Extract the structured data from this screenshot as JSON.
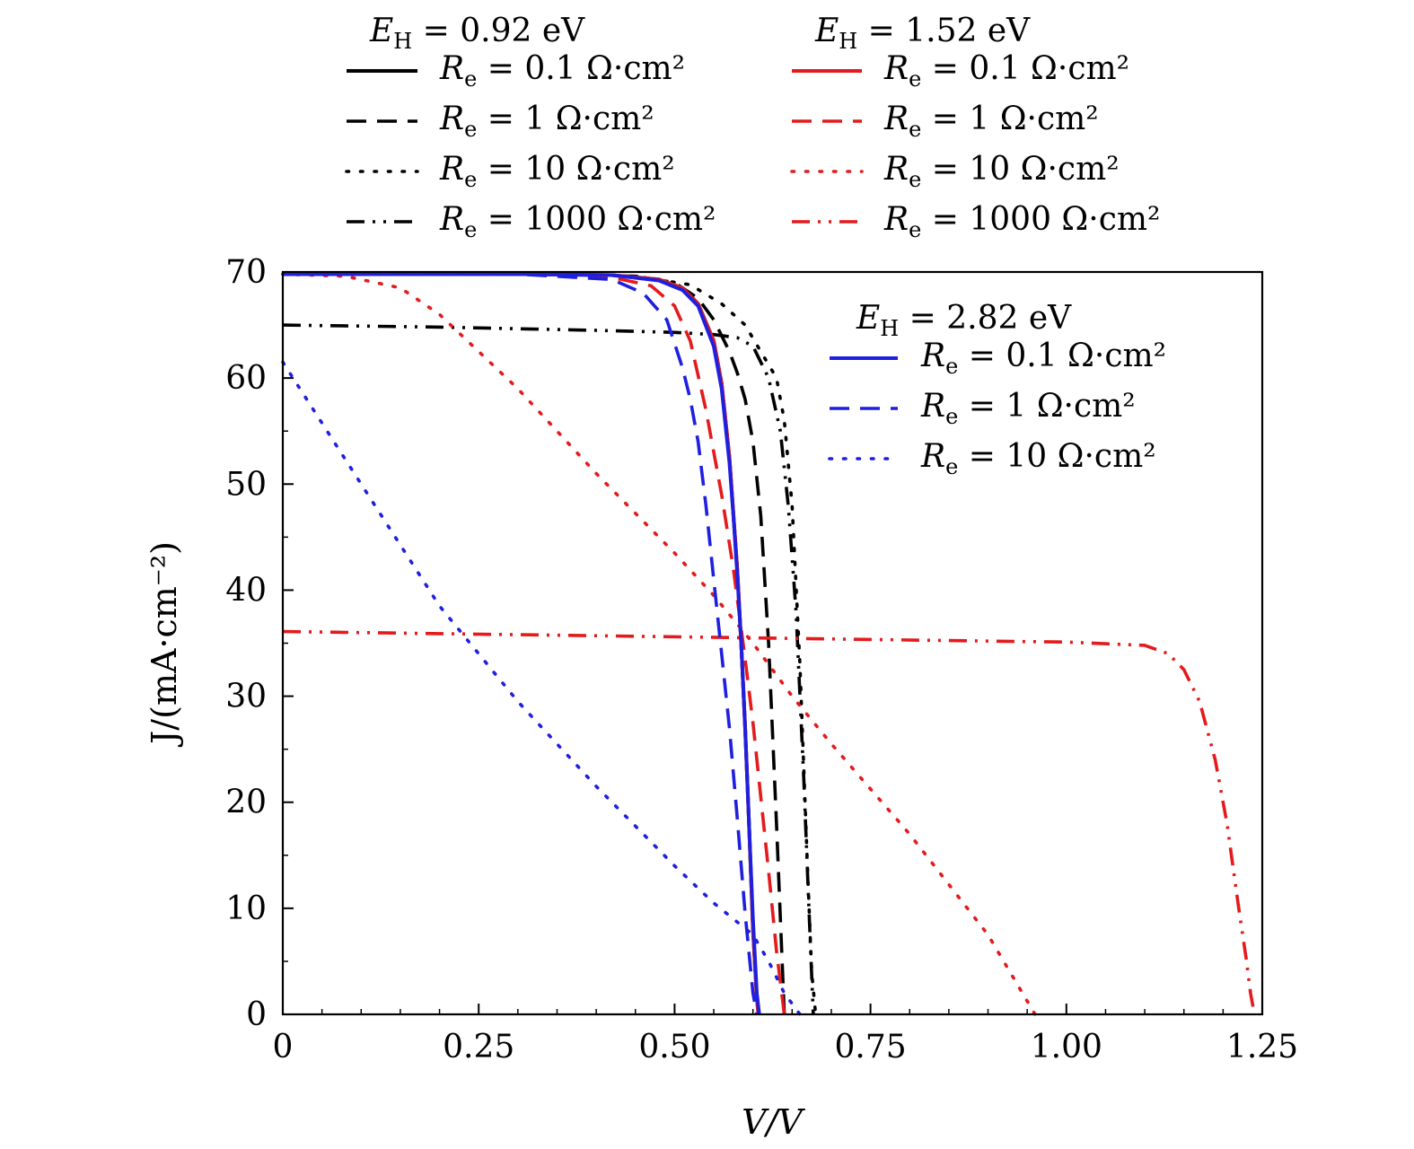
{
  "chart_data": {
    "type": "line",
    "title": "",
    "xlabel": "V/V",
    "ylabel": "J/(mA·cm⁻²)",
    "xlim": [
      0,
      1.25
    ],
    "ylim": [
      0,
      70
    ],
    "xticks": [
      0,
      0.25,
      0.5,
      0.75,
      1.0,
      1.25
    ],
    "xtick_labels": [
      "0",
      "0.25",
      "0.50",
      "0.75",
      "1.00",
      "1.25"
    ],
    "yticks": [
      0,
      10,
      20,
      30,
      40,
      50,
      60,
      70
    ],
    "ytick_labels": [
      "0",
      "10",
      "20",
      "30",
      "40",
      "50",
      "60",
      "70"
    ],
    "grid": false,
    "legend_groups": [
      {
        "title_symbol": "E",
        "title_sub": "H",
        "title_value": " = 0.92 eV",
        "color": "#000000",
        "entries": [
          {
            "symbol": "R",
            "sub": "e",
            "text": " = 0.1 Ω·cm²",
            "style": "solid"
          },
          {
            "symbol": "R",
            "sub": "e",
            "text": " = 1 Ω·cm²",
            "style": "dashed"
          },
          {
            "symbol": "R",
            "sub": "e",
            "text": " = 10 Ω·cm²",
            "style": "dotted"
          },
          {
            "symbol": "R",
            "sub": "e",
            "text": " = 1000 Ω·cm²",
            "style": "dashdotdot"
          }
        ]
      },
      {
        "title_symbol": "E",
        "title_sub": "H",
        "title_value": " = 1.52 eV",
        "color": "#e41a1c",
        "entries": [
          {
            "symbol": "R",
            "sub": "e",
            "text": " = 0.1 Ω·cm²",
            "style": "solid"
          },
          {
            "symbol": "R",
            "sub": "e",
            "text": " = 1 Ω·cm²",
            "style": "dashed"
          },
          {
            "symbol": "R",
            "sub": "e",
            "text": " = 10 Ω·cm²",
            "style": "dotted"
          },
          {
            "symbol": "R",
            "sub": "e",
            "text": " = 1000 Ω·cm²",
            "style": "dashdotdot"
          }
        ]
      },
      {
        "title_symbol": "E",
        "title_sub": "H",
        "title_value": " = 2.82 eV",
        "color": "#1f1fe0",
        "entries": [
          {
            "symbol": "R",
            "sub": "e",
            "text": " = 0.1 Ω·cm²",
            "style": "solid"
          },
          {
            "symbol": "R",
            "sub": "e",
            "text": " = 1 Ω·cm²",
            "style": "dashed"
          },
          {
            "symbol": "R",
            "sub": "e",
            "text": " = 10 Ω·cm²",
            "style": "dotted"
          }
        ]
      }
    ],
    "series": [
      {
        "name": "E_H = 0.92 eV, R_e = 0.1 Ω·cm²",
        "color": "#000000",
        "style": "solid",
        "x": [
          0,
          0.3,
          0.42,
          0.48,
          0.51,
          0.53,
          0.55,
          0.56,
          0.57,
          0.58,
          0.585,
          0.59,
          0.595,
          0.6,
          0.605,
          0.607
        ],
        "y": [
          69.8,
          69.8,
          69.7,
          69.3,
          68.5,
          67.0,
          63.5,
          59.5,
          52.5,
          42.0,
          35.0,
          27.0,
          18.0,
          8.0,
          1.5,
          0
        ]
      },
      {
        "name": "E_H = 0.92 eV, R_e = 1 Ω·cm²",
        "color": "#000000",
        "style": "dashed",
        "x": [
          0,
          0.3,
          0.45,
          0.5,
          0.53,
          0.55,
          0.57,
          0.58,
          0.59,
          0.6,
          0.61,
          0.62,
          0.63,
          0.64
        ],
        "y": [
          69.8,
          69.8,
          69.6,
          69.0,
          67.5,
          65.5,
          62.5,
          60.5,
          58.0,
          54.0,
          47.0,
          35.0,
          18.0,
          0
        ]
      },
      {
        "name": "E_H = 0.92 eV, R_e = 10 Ω·cm²",
        "color": "#000000",
        "style": "dotted",
        "x": [
          0,
          0.3,
          0.45,
          0.52,
          0.56,
          0.59,
          0.61,
          0.63,
          0.64,
          0.65,
          0.66,
          0.67,
          0.675,
          0.68
        ],
        "y": [
          69.8,
          69.8,
          69.6,
          68.8,
          67.0,
          65.0,
          62.5,
          60.0,
          56.0,
          48.0,
          33.0,
          13.0,
          4.0,
          0
        ]
      },
      {
        "name": "E_H = 0.92 eV, R_e = 1000 Ω·cm²",
        "color": "#000000",
        "style": "dashdotdot",
        "x": [
          0,
          0.2,
          0.4,
          0.5,
          0.55,
          0.58,
          0.6,
          0.62,
          0.635,
          0.645,
          0.655,
          0.665,
          0.672,
          0.677
        ],
        "y": [
          65.0,
          64.8,
          64.5,
          64.3,
          64.1,
          63.8,
          63.0,
          60.0,
          55.0,
          48.0,
          38.0,
          22.0,
          9.0,
          0
        ]
      },
      {
        "name": "E_H = 1.52 eV, R_e = 0.1 Ω·cm²",
        "color": "#e41a1c",
        "style": "solid",
        "x": [
          0,
          0.3,
          0.42,
          0.48,
          0.51,
          0.53,
          0.55,
          0.56,
          0.57,
          0.58,
          0.585,
          0.59,
          0.595,
          0.6,
          0.605,
          0.607
        ],
        "y": [
          69.8,
          69.8,
          69.7,
          69.3,
          68.5,
          67.0,
          63.5,
          59.5,
          52.5,
          42.0,
          35.0,
          27.0,
          18.0,
          8.0,
          1.5,
          0
        ]
      },
      {
        "name": "E_H = 1.52 eV, R_e = 1 Ω·cm²",
        "color": "#e41a1c",
        "style": "dashed",
        "x": [
          0,
          0.3,
          0.42,
          0.47,
          0.5,
          0.52,
          0.54,
          0.56,
          0.575,
          0.59,
          0.6,
          0.61,
          0.62,
          0.63,
          0.64
        ],
        "y": [
          69.8,
          69.8,
          69.5,
          68.7,
          66.8,
          63.5,
          57.0,
          49.0,
          42.0,
          33.5,
          27.5,
          20.5,
          13.5,
          6.0,
          0
        ]
      },
      {
        "name": "E_H = 1.52 eV, R_e = 10 Ω·cm²",
        "color": "#e41a1c",
        "style": "dotted",
        "x": [
          0,
          0.08,
          0.15,
          0.2,
          0.3,
          0.4,
          0.5,
          0.55,
          0.6,
          0.65,
          0.7,
          0.8,
          0.9,
          0.96
        ],
        "y": [
          69.8,
          69.6,
          68.5,
          66.0,
          59.0,
          51.0,
          43.5,
          39.5,
          35.0,
          30.0,
          25.5,
          17.0,
          7.5,
          0
        ]
      },
      {
        "name": "E_H = 1.52 eV, R_e = 1000 Ω·cm²",
        "color": "#e41a1c",
        "style": "dashdotdot",
        "x": [
          0,
          0.2,
          0.4,
          0.6,
          0.8,
          1.0,
          1.1,
          1.13,
          1.15,
          1.17,
          1.19,
          1.205,
          1.22,
          1.23,
          1.235,
          1.24
        ],
        "y": [
          36.1,
          35.9,
          35.7,
          35.5,
          35.3,
          35.1,
          34.8,
          34.0,
          32.5,
          29.5,
          24.0,
          18.0,
          10.0,
          5.0,
          2.0,
          0
        ]
      },
      {
        "name": "E_H = 2.82 eV, R_e = 0.1 Ω·cm²",
        "color": "#1f1fe0",
        "style": "solid",
        "x": [
          0,
          0.3,
          0.42,
          0.48,
          0.51,
          0.53,
          0.55,
          0.56,
          0.57,
          0.575,
          0.58,
          0.585,
          0.59,
          0.595,
          0.6,
          0.605,
          0.608
        ],
        "y": [
          69.8,
          69.8,
          69.7,
          69.2,
          68.3,
          66.8,
          63.0,
          59.0,
          52.0,
          47.0,
          41.5,
          35.0,
          27.0,
          18.0,
          9.0,
          2.0,
          0
        ]
      },
      {
        "name": "E_H = 2.82 eV, R_e = 1 Ω·cm²",
        "color": "#1f1fe0",
        "style": "dashed",
        "x": [
          0,
          0.3,
          0.42,
          0.46,
          0.49,
          0.51,
          0.52,
          0.53,
          0.54,
          0.55,
          0.56,
          0.57,
          0.58,
          0.59,
          0.6,
          0.605
        ],
        "y": [
          69.8,
          69.8,
          69.3,
          68.0,
          65.5,
          61.0,
          58.0,
          54.0,
          48.0,
          41.0,
          34.0,
          27.0,
          18.5,
          9.5,
          2.0,
          0
        ]
      },
      {
        "name": "E_H = 2.82 eV, R_e = 10 Ω·cm²",
        "color": "#1f1fe0",
        "style": "dotted",
        "x": [
          0,
          0.1,
          0.2,
          0.3,
          0.4,
          0.5,
          0.55,
          0.6,
          0.62,
          0.63,
          0.64,
          0.65,
          0.66
        ],
        "y": [
          61.5,
          50.0,
          38.5,
          29.5,
          21.5,
          14.0,
          10.5,
          7.5,
          5.0,
          3.5,
          2.0,
          1.0,
          0
        ]
      }
    ]
  }
}
